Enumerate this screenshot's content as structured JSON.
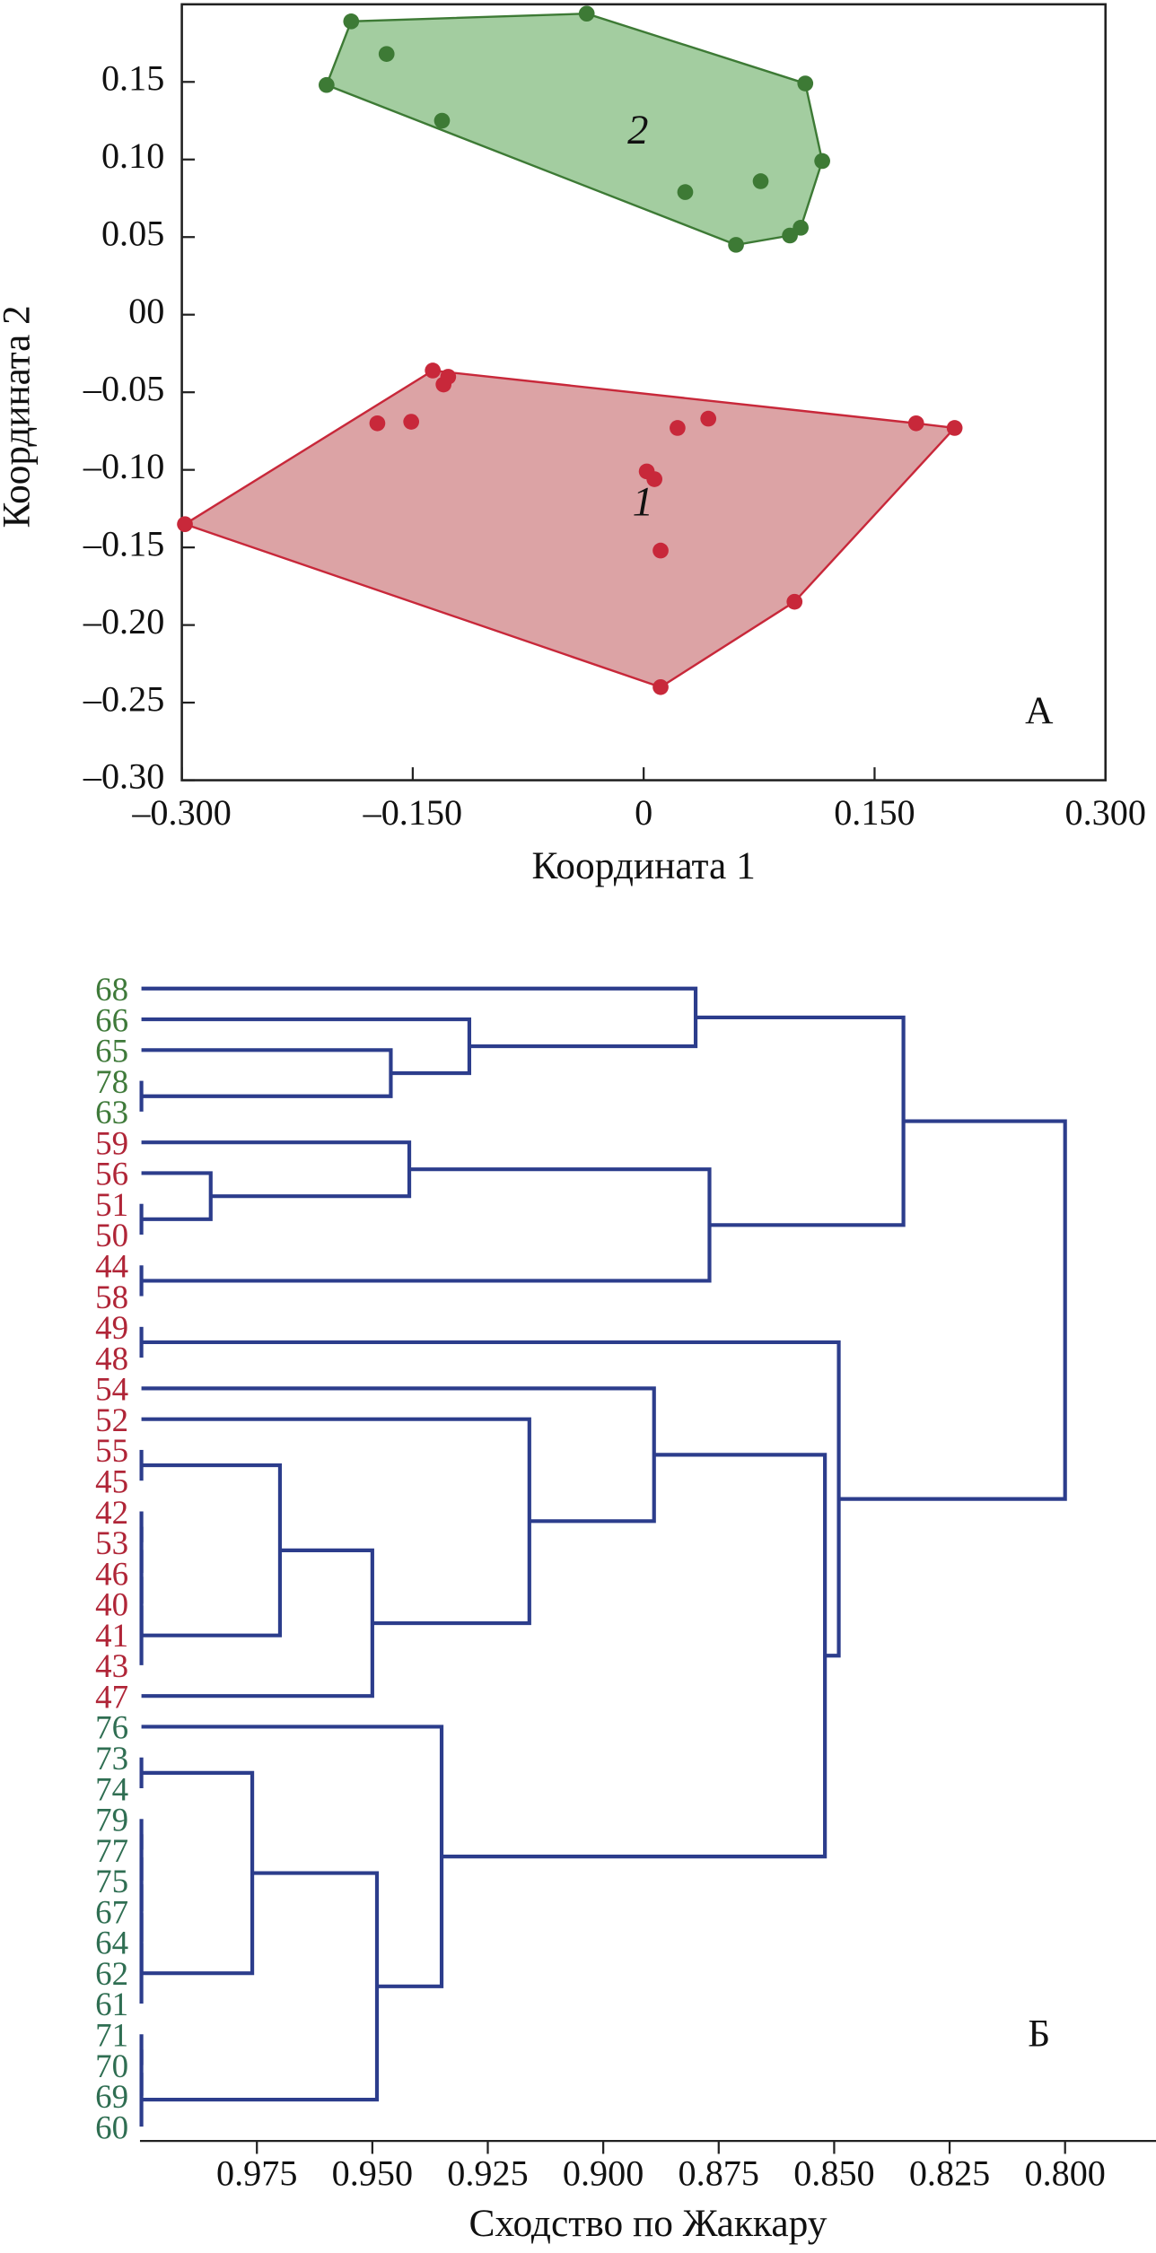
{
  "chart_data": [
    {
      "type": "scatter",
      "xlabel": "Координата 1",
      "ylabel": "Координата 2",
      "panel_label": "А",
      "xlim": [
        -0.3,
        0.3
      ],
      "xticks": [
        {
          "value": -0.3,
          "label": "–0.300"
        },
        {
          "value": -0.15,
          "label": "–0.150"
        },
        0,
        {
          "value": 0.15,
          "label": "0.150"
        },
        {
          "value": 0.3,
          "label": "0.300"
        }
      ],
      "ylim": [
        -0.3,
        0.2
      ],
      "yticks": [
        0.15,
        {
          "value": 0.1,
          "label": "0.10"
        },
        0.05,
        {
          "value": 0,
          "label": "00"
        },
        {
          "value": -0.05,
          "label": "–0.05"
        },
        {
          "value": -0.1,
          "label": "–0.10"
        },
        {
          "value": -0.15,
          "label": "–0.15"
        },
        {
          "value": -0.2,
          "label": "–0.20"
        },
        {
          "value": -0.25,
          "label": "–0.25"
        },
        {
          "value": -0.3,
          "label": "–0.30"
        }
      ],
      "series": [
        {
          "name": "2",
          "color": "#3d7a35",
          "fill": "#a3cda0",
          "x": [
            -0.19,
            -0.037,
            -0.167,
            -0.206,
            -0.131,
            0.105,
            0.116,
            0.076,
            0.027,
            0.102,
            0.095,
            0.06
          ],
          "y": [
            0.189,
            0.194,
            0.168,
            0.148,
            0.125,
            0.149,
            0.099,
            0.086,
            0.079,
            0.056,
            0.051,
            0.045
          ]
        },
        {
          "name": "1",
          "color": "#c8283a",
          "fill": "#dca3a5",
          "x": [
            -0.298,
            -0.137,
            -0.127,
            -0.13,
            -0.173,
            -0.151,
            0.042,
            0.022,
            0.177,
            0.202,
            0.002,
            0.007,
            0.011,
            0.098,
            0.011
          ],
          "y": [
            -0.135,
            -0.036,
            -0.04,
            -0.045,
            -0.07,
            -0.069,
            -0.067,
            -0.073,
            -0.07,
            -0.073,
            -0.101,
            -0.106,
            -0.152,
            -0.185,
            -0.24
          ]
        }
      ]
    },
    {
      "type": "dendrogram",
      "xlabel": "Сходство по Жаккару",
      "panel_label": "Б",
      "xlim": [
        1.0,
        0.78
      ],
      "xticks": [
        0.975,
        {
          "value": 0.95,
          "label": "0.950"
        },
        0.925,
        {
          "value": 0.9,
          "label": "0.900"
        },
        0.875,
        {
          "value": 0.85,
          "label": "0.850"
        },
        0.825,
        {
          "value": 0.8,
          "label": "0.800"
        }
      ],
      "leaves": [
        "68",
        "66",
        "65",
        "78",
        "63",
        "59",
        "56",
        "51",
        "50",
        "44",
        "58",
        "49",
        "48",
        "54",
        "52",
        "55",
        "45",
        "42",
        "53",
        "46",
        "40",
        "41",
        "43",
        "47",
        "76",
        "73",
        "74",
        "79",
        "77",
        "75",
        "67",
        "64",
        "62",
        "61",
        "71",
        "70",
        "69",
        "60"
      ],
      "leaf_colors": [
        "#3f7a3a",
        "#3f7a3a",
        "#3f7a3a",
        "#3f7a3a",
        "#3f7a3a",
        "#b02537",
        "#b02537",
        "#b02537",
        "#b02537",
        "#b02537",
        "#b02537",
        "#b02537",
        "#b02537",
        "#b02537",
        "#b02537",
        "#b02537",
        "#b02537",
        "#b02537",
        "#b02537",
        "#b02537",
        "#b02537",
        "#b02537",
        "#b02537",
        "#b02537",
        "#2f6e52",
        "#2f6e52",
        "#2f6e52",
        "#2f6e52",
        "#2f6e52",
        "#2f6e52",
        "#2f6e52",
        "#2f6e52",
        "#2f6e52",
        "#2f6e52",
        "#2f6e52",
        "#2f6e52",
        "#2f6e52",
        "#2f6e52"
      ],
      "links": [
        [
          3,
          4
        ],
        [
          2,
          38
        ],
        [
          1,
          39
        ],
        [
          0,
          40
        ],
        [
          7,
          8
        ],
        [
          6,
          42
        ],
        [
          5,
          43
        ],
        [
          9,
          10
        ],
        [
          44,
          45
        ],
        [
          41,
          46
        ],
        [
          11,
          12
        ],
        [
          15,
          16
        ],
        [
          17,
          18
        ],
        [
          50,
          19
        ],
        [
          51,
          20
        ],
        [
          52,
          21
        ],
        [
          53,
          22
        ],
        [
          49,
          54
        ],
        [
          55,
          23
        ],
        [
          14,
          56
        ],
        [
          13,
          57
        ],
        [
          25,
          26
        ],
        [
          27,
          28
        ],
        [
          60,
          29
        ],
        [
          61,
          30
        ],
        [
          62,
          31
        ],
        [
          63,
          32
        ],
        [
          64,
          33
        ],
        [
          59,
          65
        ],
        [
          34,
          35
        ],
        [
          67,
          36
        ],
        [
          68,
          37
        ],
        [
          66,
          69
        ],
        [
          24,
          70
        ],
        [
          58,
          71
        ],
        [
          48,
          72
        ],
        [
          47,
          73
        ]
      ],
      "heights": [
        1.0,
        0.946,
        0.929,
        0.88,
        1.0,
        0.985,
        0.942,
        1.0,
        0.877,
        0.835,
        1.0,
        1.0,
        1.0,
        1.0,
        1.0,
        1.0,
        1.0,
        0.97,
        0.95,
        0.916,
        0.889,
        1.0,
        1.0,
        1.0,
        1.0,
        1.0,
        1.0,
        1.0,
        0.976,
        1.0,
        1.0,
        1.0,
        0.949,
        0.935,
        0.852,
        0.849,
        0.8
      ]
    }
  ]
}
